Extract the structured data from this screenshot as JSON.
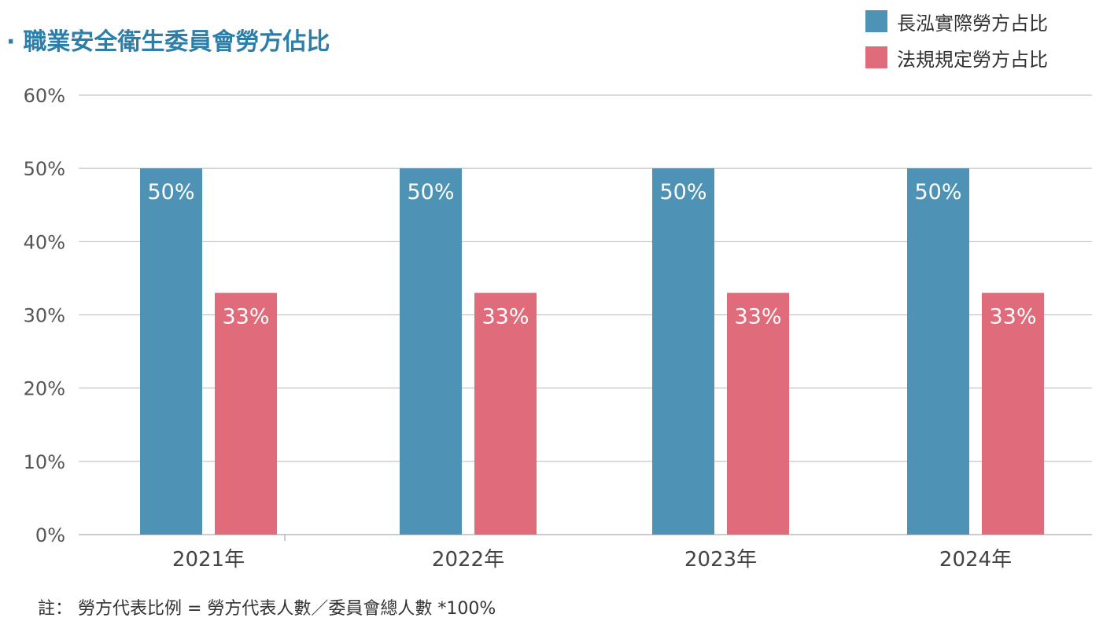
{
  "title_prefix": "·",
  "title": "職業安全衛生委員會勞方佔比",
  "legend": [
    {
      "label": "長泓實際勞方占比",
      "color": "#4e93b5"
    },
    {
      "label": "法規規定勞方占比",
      "color": "#e06b7b"
    }
  ],
  "footnote": "註： 勞方代表比例 = 勞方代表人數／委員會總人數 *100%",
  "chart_data": {
    "type": "bar",
    "title": "職業安全衛生委員會勞方佔比",
    "categories": [
      "2021年",
      "2022年",
      "2023年",
      "2024年"
    ],
    "series": [
      {
        "name": "長泓實際勞方占比",
        "values": [
          50,
          50,
          50,
          50
        ],
        "color": "#4e93b5"
      },
      {
        "name": "法規規定勞方占比",
        "values": [
          33,
          33,
          33,
          33
        ],
        "color": "#e06b7b"
      }
    ],
    "data_labels": [
      [
        "50%",
        "50%",
        "50%",
        "50%"
      ],
      [
        "33%",
        "33%",
        "33%",
        "33%"
      ]
    ],
    "yticks": [
      "0%",
      "10%",
      "20%",
      "30%",
      "40%",
      "50%",
      "60%"
    ],
    "ylim": [
      0,
      60
    ],
    "grid": true,
    "legend_position": "top-right"
  }
}
